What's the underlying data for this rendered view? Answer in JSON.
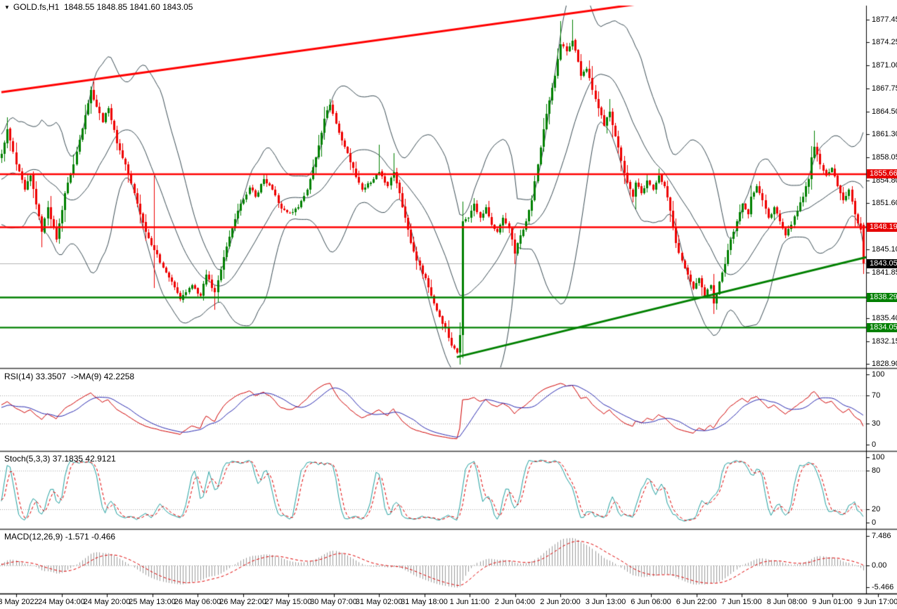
{
  "title": {
    "symbol": "GOLD.fs,H1",
    "ohlc": "1848.55 1848.85 1841.60 1843.05",
    "dropdown_icon": "symbol-dropdown"
  },
  "colors": {
    "background": "#ffffff",
    "text": "#000000",
    "bull": "#008000",
    "bear": "#ee0000",
    "bollinger": "#3b4d55",
    "level_red": "#ff0000",
    "level_green": "#008000",
    "trend_red": "#ff0000",
    "trend_green": "#008000",
    "current_price_line": "#b4b4b4",
    "badge_red": "#e60000",
    "badge_green": "#008000",
    "badge_black": "#000000",
    "rsi_line": "#d10000",
    "rsi_ma": "#2929b0",
    "stoch_main": "#20a0a0",
    "stoch_signal": "#e00000",
    "macd_hist": "#9c9c9c",
    "macd_signal": "#e00000",
    "dotted_level": "#a8a8a8",
    "separator": "#3c3c3c"
  },
  "chart_data": {
    "type": "candlestick",
    "symbol": "GOLD.fs",
    "timeframe": "H1",
    "last_bar": {
      "open": 1848.55,
      "high": 1848.85,
      "low": 1841.6,
      "close": 1843.05
    },
    "bars_total": 300,
    "x_labels": [
      "23 May 2022",
      "24 May 04:00",
      "24 May 20:00",
      "25 May 13:00",
      "26 May 06:00",
      "26 May 22:00",
      "27 May 15:00",
      "30 May 07:00",
      "31 May 02:00",
      "31 May 18:00",
      "1 Jun 11:00",
      "2 Jun 04:00",
      "2 Jun 20:00",
      "3 Jun 13:00",
      "6 Jun 06:00",
      "6 Jun 22:00",
      "7 Jun 15:00",
      "8 Jun 08:00",
      "9 Jun 01:00",
      "9 Jun 17:00"
    ],
    "main": {
      "y_range": [
        1828.45,
        1879.4
      ],
      "y_ticks": [
        1877.45,
        1874.25,
        1871.0,
        1867.75,
        1864.5,
        1861.3,
        1858.05,
        1854.8,
        1851.6,
        1845.1,
        1841.85,
        1835.4,
        1832.15,
        1828.9
      ],
      "bollinger": {
        "period": 20,
        "deviation": 2
      },
      "price_path": [
        [
          0,
          1858.5
        ],
        [
          2,
          1862
        ],
        [
          5,
          1857
        ],
        [
          8,
          1853.5
        ],
        [
          10,
          1855.5
        ],
        [
          14,
          1847.5
        ],
        [
          16,
          1851
        ],
        [
          19,
          1846.5
        ],
        [
          22,
          1853
        ],
        [
          25,
          1857
        ],
        [
          29,
          1864
        ],
        [
          31,
          1867.5
        ],
        [
          35,
          1863
        ],
        [
          37,
          1865
        ],
        [
          40,
          1860
        ],
        [
          43,
          1857
        ],
        [
          47,
          1851.5
        ],
        [
          50,
          1847.5
        ],
        [
          53,
          1845
        ],
        [
          56,
          1842.5
        ],
        [
          59,
          1840.5
        ],
        [
          62,
          1838
        ],
        [
          66,
          1840
        ],
        [
          69,
          1838.5
        ],
        [
          71,
          1841.5
        ],
        [
          74,
          1839
        ],
        [
          77,
          1844
        ],
        [
          80,
          1848
        ],
        [
          83,
          1851.5
        ],
        [
          86,
          1853.8
        ],
        [
          88,
          1852.5
        ],
        [
          91,
          1855
        ],
        [
          94,
          1853.5
        ],
        [
          97,
          1850.8
        ],
        [
          100,
          1850.2
        ],
        [
          103,
          1851
        ],
        [
          106,
          1853.5
        ],
        [
          109,
          1858
        ],
        [
          112,
          1863.5
        ],
        [
          114,
          1865.5
        ],
        [
          117,
          1861.5
        ],
        [
          119,
          1859.5
        ],
        [
          122,
          1856.5
        ],
        [
          125,
          1853.5
        ],
        [
          128,
          1854.5
        ],
        [
          131,
          1856
        ],
        [
          134,
          1854
        ],
        [
          136,
          1856
        ],
        [
          138,
          1853
        ],
        [
          140,
          1849.5
        ],
        [
          142,
          1846
        ],
        [
          144,
          1843.5
        ],
        [
          147,
          1841
        ],
        [
          149,
          1838.5
        ],
        [
          151,
          1836.5
        ],
        [
          154,
          1834
        ],
        [
          156,
          1831.5
        ],
        [
          158,
          1830.5
        ],
        [
          159,
          1833
        ],
        [
          160,
          1849
        ],
        [
          162,
          1849.5
        ],
        [
          164,
          1851.5
        ],
        [
          166,
          1849.5
        ],
        [
          168,
          1851
        ],
        [
          170,
          1848.5
        ],
        [
          172,
          1847.5
        ],
        [
          174,
          1849.5
        ],
        [
          176,
          1848
        ],
        [
          178,
          1844.5
        ],
        [
          180,
          1847
        ],
        [
          182,
          1849
        ],
        [
          184,
          1852
        ],
        [
          186,
          1857
        ],
        [
          188,
          1862
        ],
        [
          190,
          1866
        ],
        [
          192,
          1869.5
        ],
        [
          194,
          1874
        ],
        [
          196,
          1873
        ],
        [
          198,
          1874.5
        ],
        [
          200,
          1871.5
        ],
        [
          201,
          1869.5
        ],
        [
          203,
          1870.5
        ],
        [
          205,
          1867.5
        ],
        [
          207,
          1865
        ],
        [
          209,
          1862.5
        ],
        [
          211,
          1864.5
        ],
        [
          213,
          1861
        ],
        [
          215,
          1857.5
        ],
        [
          217,
          1854.5
        ],
        [
          219,
          1852.5
        ],
        [
          220,
          1854.5
        ],
        [
          222,
          1853
        ],
        [
          224,
          1854.8
        ],
        [
          226,
          1853.5
        ],
        [
          228,
          1855.5
        ],
        [
          230,
          1854
        ],
        [
          232,
          1850.5
        ],
        [
          234,
          1846
        ],
        [
          236,
          1843.5
        ],
        [
          238,
          1841.5
        ],
        [
          240,
          1839.5
        ],
        [
          242,
          1841
        ],
        [
          244,
          1838.5
        ],
        [
          246,
          1840
        ],
        [
          247,
          1837.5
        ],
        [
          249,
          1840.5
        ],
        [
          251,
          1843
        ],
        [
          253,
          1846.5
        ],
        [
          255,
          1849
        ],
        [
          257,
          1851.5
        ],
        [
          259,
          1850
        ],
        [
          260,
          1852.5
        ],
        [
          262,
          1854
        ],
        [
          264,
          1852
        ],
        [
          266,
          1849.5
        ],
        [
          268,
          1851
        ],
        [
          270,
          1849
        ],
        [
          272,
          1847
        ],
        [
          274,
          1848.5
        ],
        [
          276,
          1850.5
        ],
        [
          278,
          1852.5
        ],
        [
          280,
          1855
        ],
        [
          281,
          1858
        ],
        [
          282,
          1859.5
        ],
        [
          284,
          1857
        ],
        [
          286,
          1855.5
        ],
        [
          288,
          1856.5
        ],
        [
          290,
          1854
        ],
        [
          292,
          1852
        ],
        [
          294,
          1853.5
        ],
        [
          296,
          1850
        ],
        [
          298,
          1847.8
        ],
        [
          299,
          1843.05
        ]
      ],
      "wick_overrides": {
        "53": {
          "high": 1855.5,
          "low": 1839.6
        },
        "74": {
          "low": 1836.6
        },
        "131": {
          "high": 1859.8
        },
        "136": {
          "high": 1858.6
        },
        "160": {
          "high": 1851.8,
          "low": 1829.7
        },
        "194": {
          "high": 1877.2
        },
        "198": {
          "high": 1877.45
        },
        "211": {
          "high": 1866.2
        },
        "247": {
          "low": 1836.0
        },
        "282": {
          "high": 1861.8
        },
        "299": {
          "open": 1848.55,
          "high": 1848.85,
          "low": 1841.6,
          "close": 1843.05
        }
      },
      "levels": [
        {
          "price": 1855.66,
          "label": "1855.66",
          "color": "red"
        },
        {
          "price": 1848.19,
          "label": "1848.19",
          "color": "red"
        },
        {
          "price": 1843.05,
          "label": "1843.05",
          "color": "current"
        },
        {
          "price": 1838.29,
          "label": "1838.29",
          "color": "green"
        },
        {
          "price": 1834.05,
          "label": "1834.05",
          "color": "green"
        }
      ],
      "trendlines": [
        {
          "from": [
            0,
            1867.2
          ],
          "to": [
            220.5,
            1879.6
          ],
          "color": "red"
        },
        {
          "from": [
            158,
            1829.9
          ],
          "to": [
            300,
            1843.95
          ],
          "color": "green"
        }
      ]
    },
    "rsi": {
      "label": "RSI(14) 33.3507  ->MA(9) 42.2258",
      "period": 14,
      "ma_period": 9,
      "value": 33.3507,
      "ma_value": 42.2258,
      "ticks": [
        100,
        70,
        30,
        0
      ],
      "dotted_levels": [
        70,
        30
      ],
      "range": [
        0,
        100
      ]
    },
    "stoch": {
      "label": "Stoch(5,3,3) 37.1835 42.9121",
      "k": 5,
      "d": 3,
      "slowing": 3,
      "value": 37.1835,
      "signal_value": 42.9121,
      "ticks": [
        100,
        80,
        20,
        0
      ],
      "dotted_levels": [
        80,
        20
      ],
      "range": [
        0,
        100
      ]
    },
    "macd": {
      "label": "MACD(12,26,9) -1.571 -0.466",
      "fast": 12,
      "slow": 26,
      "signal": 9,
      "value": -1.571,
      "signal_value": -0.466,
      "ticks": [
        7.486,
        0.0,
        -5.466
      ],
      "tick_labels": [
        "7.486",
        "0.00",
        "-5.466"
      ],
      "dotted_levels": [
        0
      ],
      "range": [
        -5.466,
        7.486
      ]
    }
  }
}
